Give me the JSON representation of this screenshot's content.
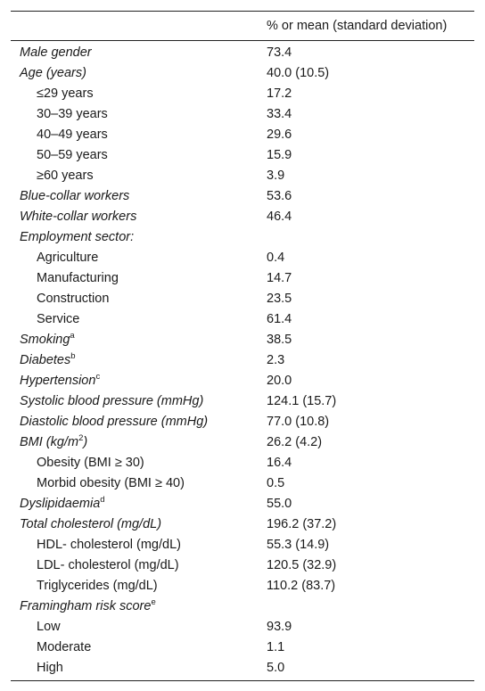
{
  "table": {
    "header": {
      "col1": "",
      "col2": "% or mean (standard deviation)"
    },
    "rows": [
      {
        "label": "Male gender",
        "sup": "",
        "value": "73.4",
        "italic": true,
        "indent": false
      },
      {
        "label": "Age (years)",
        "sup": "",
        "value": "40.0 (10.5)",
        "italic": true,
        "indent": false
      },
      {
        "label": "≤29 years",
        "sup": "",
        "value": "17.2",
        "italic": false,
        "indent": true
      },
      {
        "label": "30–39 years",
        "sup": "",
        "value": "33.4",
        "italic": false,
        "indent": true
      },
      {
        "label": "40–49 years",
        "sup": "",
        "value": "29.6",
        "italic": false,
        "indent": true
      },
      {
        "label": "50–59 years",
        "sup": "",
        "value": "15.9",
        "italic": false,
        "indent": true
      },
      {
        "label": "≥60 years",
        "sup": "",
        "value": "3.9",
        "italic": false,
        "indent": true
      },
      {
        "label": "Blue-collar workers",
        "sup": "",
        "value": "53.6",
        "italic": true,
        "indent": false
      },
      {
        "label": "White-collar workers",
        "sup": "",
        "value": "46.4",
        "italic": true,
        "indent": false
      },
      {
        "label": "Employment sector:",
        "sup": "",
        "value": "",
        "italic": true,
        "indent": false
      },
      {
        "label": "Agriculture",
        "sup": "",
        "value": "0.4",
        "italic": false,
        "indent": true
      },
      {
        "label": "Manufacturing",
        "sup": "",
        "value": "14.7",
        "italic": false,
        "indent": true
      },
      {
        "label": "Construction",
        "sup": "",
        "value": "23.5",
        "italic": false,
        "indent": true
      },
      {
        "label": "Service",
        "sup": "",
        "value": "61.4",
        "italic": false,
        "indent": true
      },
      {
        "label": "Smoking",
        "sup": "a",
        "value": "38.5",
        "italic": true,
        "indent": false
      },
      {
        "label": "Diabetes",
        "sup": "b",
        "value": "2.3",
        "italic": true,
        "indent": false
      },
      {
        "label": "Hypertension",
        "sup": "c",
        "value": "20.0",
        "italic": true,
        "indent": false
      },
      {
        "label": "Systolic blood pressure (mmHg)",
        "sup": "",
        "value": "124.1 (15.7)",
        "italic": true,
        "indent": false
      },
      {
        "label": "Diastolic blood pressure (mmHg)",
        "sup": "",
        "value": "77.0 (10.8)",
        "italic": true,
        "indent": false
      },
      {
        "label": "BMI (kg/m",
        "sup": "2",
        "label_tail": ")",
        "value": "26.2 (4.2)",
        "italic": true,
        "indent": false
      },
      {
        "label": "Obesity (BMI    ≥    30)",
        "sup": "",
        "value": "16.4",
        "italic": false,
        "indent": true
      },
      {
        "label": "Morbid obesity (BMI    ≥    40)",
        "sup": "",
        "value": "0.5",
        "italic": false,
        "indent": true
      },
      {
        "label": "Dyslipidaemia",
        "sup": "d",
        "value": "55.0",
        "italic": true,
        "indent": false
      },
      {
        "label": "Total cholesterol (mg/dL)",
        "sup": "",
        "value": "196.2 (37.2)",
        "italic": true,
        "indent": false
      },
      {
        "label": "HDL- cholesterol (mg/dL)",
        "sup": "",
        "value": "55.3 (14.9)",
        "italic": false,
        "indent": true
      },
      {
        "label": "LDL- cholesterol (mg/dL)",
        "sup": "",
        "value": "120.5 (32.9)",
        "italic": false,
        "indent": true
      },
      {
        "label": "Triglycerides (mg/dL)",
        "sup": "",
        "value": "110.2 (83.7)",
        "italic": false,
        "indent": true
      },
      {
        "label": "Framingham risk score",
        "sup": "e",
        "value": "",
        "italic": true,
        "indent": false
      },
      {
        "label": "Low",
        "sup": "",
        "value": "93.9",
        "italic": false,
        "indent": true
      },
      {
        "label": "Moderate",
        "sup": "",
        "value": "1.1",
        "italic": false,
        "indent": true
      },
      {
        "label": "High",
        "sup": "",
        "value": "5.0",
        "italic": false,
        "indent": true
      }
    ]
  }
}
